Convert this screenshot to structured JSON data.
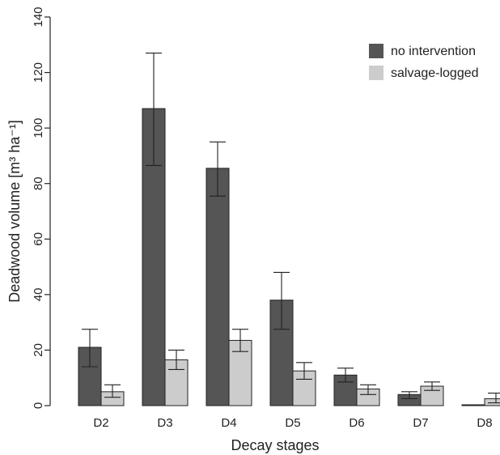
{
  "chart_data": {
    "type": "bar",
    "title": "",
    "xlabel": "Decay stages",
    "ylabel": "Deadwood volume [m³ ha⁻¹]",
    "ylim": [
      0,
      140
    ],
    "yticks": [
      0,
      20,
      40,
      60,
      80,
      100,
      120,
      140
    ],
    "categories": [
      "D2",
      "D3",
      "D4",
      "D5",
      "D6",
      "D7",
      "D8"
    ],
    "series": [
      {
        "name": "no intervention",
        "color": "#555555",
        "values": [
          21,
          107,
          85.5,
          38,
          11,
          4,
          0.3
        ],
        "error_low": [
          14,
          86.5,
          75.5,
          27.5,
          8.5,
          2.5,
          0.3
        ],
        "error_high": [
          27.5,
          127,
          95,
          48,
          13.5,
          5,
          0.3
        ]
      },
      {
        "name": "salvage-logged",
        "color": "#cccccc",
        "values": [
          5,
          16.5,
          23.5,
          12.5,
          6,
          7,
          2.5
        ],
        "error_low": [
          3,
          13,
          19.5,
          9.5,
          4,
          5.5,
          1
        ],
        "error_high": [
          7.5,
          20,
          27.5,
          15.5,
          7.5,
          8.5,
          4.5
        ]
      }
    ],
    "grid": false,
    "legend_position": "top-right"
  }
}
